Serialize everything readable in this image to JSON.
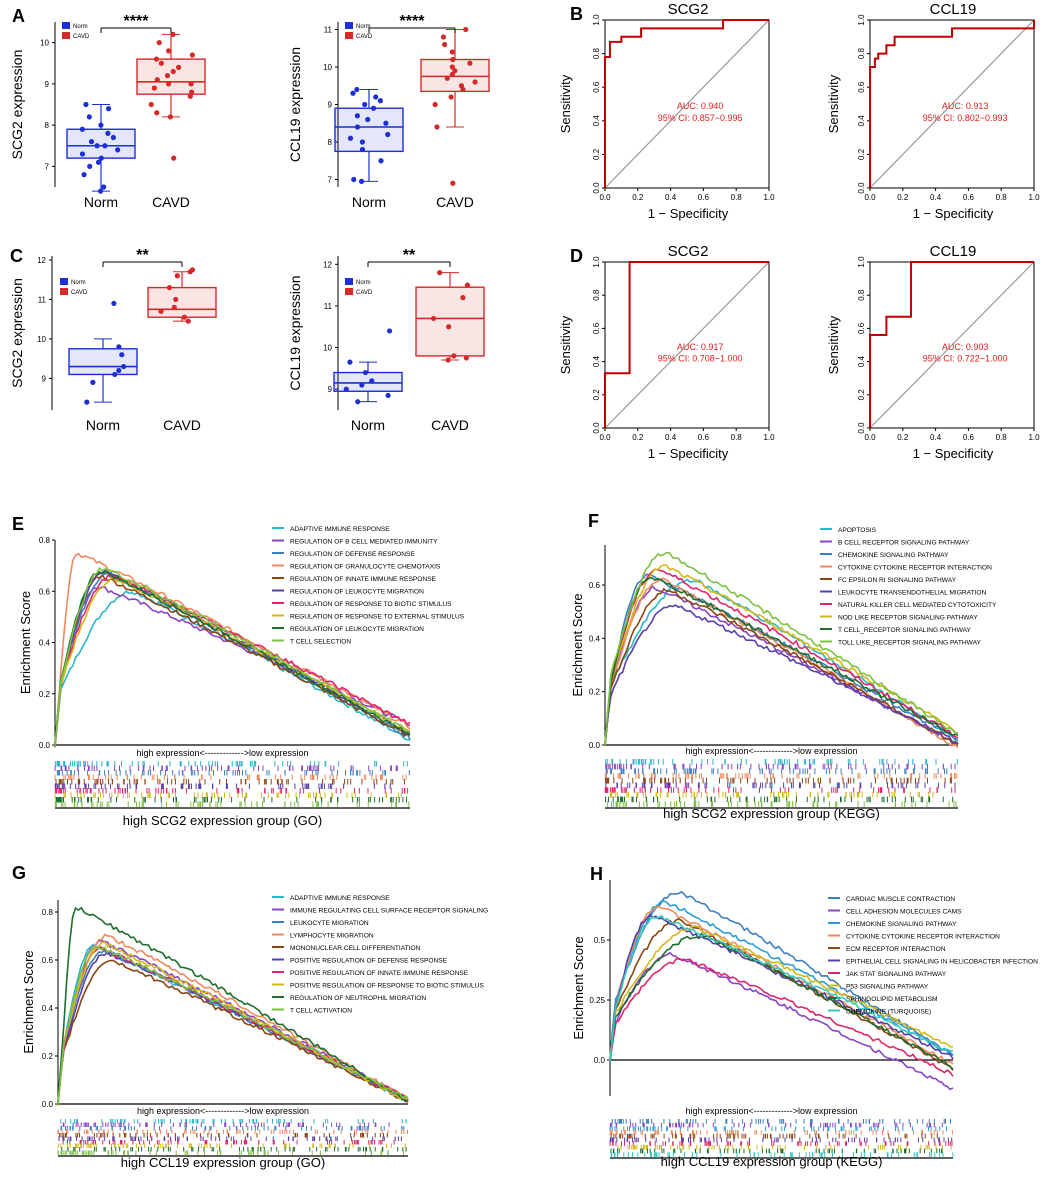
{
  "colors": {
    "norm": "#1f2fd6",
    "cavd": "#d42a2a",
    "roc": "#c00000",
    "diag": "#999999",
    "auc_text": "#e02020"
  },
  "labels": {
    "xlabel_roc": "1 − Specificity",
    "ylabel_roc": "Sensitivity",
    "legend_norm": "Norm",
    "legend_cavd": "CAVD",
    "es_ylabel": "Enrichment Score",
    "expr_arrow": "high expression<------------->low expression"
  },
  "chart_data": [
    {
      "id": "A1",
      "type": "box",
      "panel": "A",
      "ylabel": "SCG2 expression",
      "categories": [
        "Norm",
        "CAVD"
      ],
      "ylim": [
        6.5,
        10.5
      ],
      "yticks": [
        7,
        8,
        9,
        10
      ],
      "sig": "****",
      "groups": [
        {
          "name": "Norm",
          "q1": 7.2,
          "median": 7.5,
          "q3": 7.9,
          "whislo": 6.4,
          "whishi": 8.5,
          "points": [
            6.4,
            6.5,
            6.8,
            7.0,
            7.1,
            7.2,
            7.3,
            7.4,
            7.5,
            7.5,
            7.6,
            7.7,
            7.8,
            7.9,
            8.0,
            8.2,
            8.4,
            8.5
          ]
        },
        {
          "name": "CAVD",
          "q1": 8.75,
          "median": 9.05,
          "q3": 9.6,
          "whislo": 8.2,
          "whishi": 10.2,
          "points": [
            7.2,
            8.2,
            8.3,
            8.5,
            8.7,
            8.8,
            8.9,
            9.0,
            9.0,
            9.1,
            9.2,
            9.3,
            9.4,
            9.5,
            9.6,
            9.7,
            9.8,
            10.0,
            10.2
          ]
        }
      ]
    },
    {
      "id": "A2",
      "type": "box",
      "panel": "",
      "ylabel": "CCL19 expression",
      "categories": [
        "Norm",
        "CAVD"
      ],
      "ylim": [
        6.8,
        11.2
      ],
      "yticks": [
        7,
        8,
        9,
        10,
        11
      ],
      "sig": "****",
      "groups": [
        {
          "name": "Norm",
          "q1": 7.75,
          "median": 8.4,
          "q3": 8.9,
          "whislo": 6.95,
          "whishi": 9.4,
          "points": [
            6.95,
            7.0,
            7.5,
            7.8,
            8.0,
            8.1,
            8.2,
            8.4,
            8.5,
            8.6,
            8.7,
            8.9,
            9.0,
            9.1,
            9.2,
            9.3,
            9.4
          ]
        },
        {
          "name": "CAVD",
          "q1": 9.35,
          "median": 9.75,
          "q3": 10.2,
          "whislo": 8.4,
          "whishi": 11.0,
          "points": [
            6.9,
            8.4,
            9.0,
            9.2,
            9.4,
            9.5,
            9.6,
            9.7,
            9.8,
            9.9,
            10.0,
            10.1,
            10.2,
            10.4,
            10.6,
            10.8,
            11.0
          ]
        }
      ]
    },
    {
      "id": "B1",
      "type": "roc",
      "panel": "B",
      "title": "SCG2",
      "auc": "AUC: 0.940",
      "ci": "95% CI: 0.857−0.995",
      "fpr": [
        0,
        0,
        0.03,
        0.03,
        0.1,
        0.1,
        0.22,
        0.22,
        0.72,
        0.72,
        1.0
      ],
      "tpr": [
        0,
        0.78,
        0.78,
        0.87,
        0.87,
        0.9,
        0.9,
        0.95,
        0.95,
        1.0,
        1.0
      ]
    },
    {
      "id": "B2",
      "type": "roc",
      "panel": "",
      "title": "CCL19",
      "auc": "AUC: 0.913",
      "ci": "95% CI: 0.802−0.993",
      "fpr": [
        0,
        0,
        0.03,
        0.03,
        0.05,
        0.05,
        0.1,
        0.1,
        0.15,
        0.15,
        0.5,
        0.5,
        1.0,
        1.0
      ],
      "tpr": [
        0,
        0.72,
        0.72,
        0.77,
        0.77,
        0.8,
        0.8,
        0.85,
        0.85,
        0.9,
        0.9,
        0.95,
        0.95,
        1.0
      ]
    },
    {
      "id": "C1",
      "type": "box",
      "panel": "C",
      "ylabel": "SCG2 expression",
      "categories": [
        "Norm",
        "CAVD"
      ],
      "ylim": [
        8.2,
        12.1
      ],
      "yticks": [
        9,
        10,
        11,
        12
      ],
      "sig": "**",
      "groups": [
        {
          "name": "Norm",
          "q1": 9.1,
          "median": 9.3,
          "q3": 9.75,
          "whislo": 8.4,
          "whishi": 10.0,
          "points": [
            8.4,
            8.9,
            9.1,
            9.2,
            9.3,
            9.6,
            9.8,
            10.9
          ]
        },
        {
          "name": "CAVD",
          "q1": 10.55,
          "median": 10.75,
          "q3": 11.3,
          "whislo": 10.45,
          "whishi": 11.7,
          "points": [
            10.45,
            10.55,
            10.7,
            10.8,
            11.0,
            11.3,
            11.6,
            11.7,
            11.75
          ]
        }
      ]
    },
    {
      "id": "C2",
      "type": "box",
      "panel": "",
      "ylabel": "CCL19 expression",
      "categories": [
        "Norm",
        "CAVD"
      ],
      "ylim": [
        8.5,
        12.2
      ],
      "yticks": [
        9,
        10,
        11,
        12
      ],
      "sig": "**",
      "groups": [
        {
          "name": "Norm",
          "q1": 8.95,
          "median": 9.15,
          "q3": 9.4,
          "whislo": 8.7,
          "whishi": 9.65,
          "points": [
            8.7,
            8.85,
            9.0,
            9.1,
            9.2,
            9.4,
            9.65,
            10.4
          ]
        },
        {
          "name": "CAVD",
          "q1": 9.8,
          "median": 10.7,
          "q3": 11.45,
          "whislo": 9.7,
          "whishi": 11.8,
          "points": [
            9.7,
            9.75,
            9.8,
            10.5,
            10.7,
            11.2,
            11.5,
            11.8
          ]
        }
      ]
    },
    {
      "id": "D1",
      "type": "roc",
      "panel": "D",
      "title": "SCG2",
      "auc": "AUC: 0.917",
      "ci": "95% CI: 0.708−1.000",
      "fpr": [
        0,
        0,
        0.03,
        0.03,
        0.15,
        0.15,
        1.0
      ],
      "tpr": [
        0,
        0.33,
        0.33,
        0.33,
        0.33,
        1.0,
        1.0
      ]
    },
    {
      "id": "D2",
      "type": "roc",
      "panel": "",
      "title": "CCL19",
      "auc": "AUC: 0.903",
      "ci": "95% CI: 0.722−1.000",
      "fpr": [
        0,
        0,
        0.1,
        0.1,
        0.25,
        0.25,
        1.0
      ],
      "tpr": [
        0,
        0.56,
        0.56,
        0.67,
        0.67,
        1.0,
        1.0
      ]
    },
    {
      "id": "E",
      "type": "line",
      "subtype": "gsea",
      "panel": "E",
      "title": "high SCG2 expression group (GO)",
      "ylim": [
        0,
        0.8
      ],
      "yticks": [
        0.0,
        0.2,
        0.4,
        0.6,
        0.8
      ],
      "series": [
        {
          "name": "ADAPTIVE IMMUNE RESPONSE",
          "color": "#2ab7c9",
          "peak": 0.6,
          "pos": 0.22,
          "end": 0.02
        },
        {
          "name": "REGULATION OF B CELL MEDIATED IMMUNITY",
          "color": "#8a44c6",
          "peak": 0.62,
          "pos": 0.12,
          "end": 0.08
        },
        {
          "name": "REGULATION OF DEFENSE RESPONSE",
          "color": "#3e7fc1",
          "peak": 0.67,
          "pos": 0.15,
          "end": 0.03
        },
        {
          "name": "REGULATION OF GRANULOCYTE CHEMOTAXIS",
          "color": "#f08a5d",
          "peak": 0.75,
          "pos": 0.06,
          "end": 0.07
        },
        {
          "name": "REGULATION OF INNATE IMMUNE RESPONSE",
          "color": "#8b4513",
          "peak": 0.66,
          "pos": 0.13,
          "end": 0.03
        },
        {
          "name": "REGULATION OF LEUKOCYTE MIGRATION",
          "color": "#5a3fa8",
          "peak": 0.68,
          "pos": 0.14,
          "end": 0.04
        },
        {
          "name": "REGULATION OF RESPONSE TO BIOTIC STIMULUS",
          "color": "#e0266e",
          "peak": 0.66,
          "pos": 0.16,
          "end": 0.08
        },
        {
          "name": "REGULATION OF RESPONSE TO EXTERNAL STIMULUS",
          "color": "#d4b81a",
          "peak": 0.65,
          "pos": 0.17,
          "end": 0.05
        },
        {
          "name": "REGULATION OF LEUKOCYTE MIGRATION",
          "color": "#1f6e2e",
          "peak": 0.68,
          "pos": 0.13,
          "end": 0.04
        },
        {
          "name": "T CELL SELECTION",
          "color": "#7dc242",
          "peak": 0.69,
          "pos": 0.14,
          "end": 0.05
        }
      ]
    },
    {
      "id": "F",
      "type": "line",
      "subtype": "gsea",
      "panel": "F",
      "title": "high SCG2 expression group (KEGG)",
      "ylim": [
        0,
        0.75
      ],
      "yticks": [
        0.0,
        0.2,
        0.4,
        0.6
      ],
      "series": [
        {
          "name": "APOPTOSIS",
          "color": "#2ab7c9",
          "peak": 0.62,
          "pos": 0.25,
          "end": 0.02
        },
        {
          "name": "B CELL RECEPTOR SIGNALING PATHWAY",
          "color": "#8a44c6",
          "peak": 0.59,
          "pos": 0.14,
          "end": 0.0
        },
        {
          "name": "CHEMOKINE SIGNALING PATHWAY",
          "color": "#3e7fc1",
          "peak": 0.64,
          "pos": 0.12,
          "end": 0.02
        },
        {
          "name": "CYTOKINE CYTOKINE RECEPTOR INTERACTION",
          "color": "#f08a5d",
          "peak": 0.62,
          "pos": 0.16,
          "end": -0.01
        },
        {
          "name": "FC EPSILON RI SIGNALING PATHWAY",
          "color": "#8b4513",
          "peak": 0.58,
          "pos": 0.18,
          "end": 0.0
        },
        {
          "name": "LEUKOCYTE TRANSENDOTHELIAL MIGRATION",
          "color": "#5a3fa8",
          "peak": 0.52,
          "pos": 0.2,
          "end": 0.01
        },
        {
          "name": "NATURAL KILLER CELL MEDIATED CYTOTOXICITY",
          "color": "#e0266e",
          "peak": 0.66,
          "pos": 0.15,
          "end": 0.03
        },
        {
          "name": "NOD LIKE RECEPTOR SIGNALING PATHWAY",
          "color": "#d4b81a",
          "peak": 0.67,
          "pos": 0.17,
          "end": 0.05
        },
        {
          "name": "T CELL_RECEPTOR SIGNALING PATHWAY",
          "color": "#1f6e2e",
          "peak": 0.63,
          "pos": 0.13,
          "end": 0.03
        },
        {
          "name": "TOLL LIKE_RECEPTOR SIGNALING PATHWAY",
          "color": "#7dc242",
          "peak": 0.72,
          "pos": 0.17,
          "end": 0.04
        }
      ]
    },
    {
      "id": "G",
      "type": "line",
      "subtype": "gsea",
      "panel": "G",
      "title": "high CCL19 expression group (GO)",
      "ylim": [
        0,
        0.85
      ],
      "yticks": [
        0.0,
        0.2,
        0.4,
        0.6,
        0.8
      ],
      "series": [
        {
          "name": "ADAPTIVE IMMUNE RESPONSE",
          "color": "#2ab7c9",
          "peak": 0.66,
          "pos": 0.1,
          "end": 0.01
        },
        {
          "name": "IMMUNE REGULATING CELL SURFACE RECEPTOR SIGNALING",
          "color": "#8a44c6",
          "peak": 0.68,
          "pos": 0.12,
          "end": 0.02
        },
        {
          "name": "LEUKOCYTE MIGRATION",
          "color": "#3e7fc1",
          "peak": 0.64,
          "pos": 0.13,
          "end": 0.01
        },
        {
          "name": "LYMPHOCYTE MIGRATION",
          "color": "#f08a5d",
          "peak": 0.7,
          "pos": 0.14,
          "end": 0.02
        },
        {
          "name": "MONONUCLEAR CELL DIFFERENTIATION",
          "color": "#8b4513",
          "peak": 0.6,
          "pos": 0.15,
          "end": 0.01
        },
        {
          "name": "POSITIVE REGULATION OF DEFENSE RESPONSE",
          "color": "#5a3fa8",
          "peak": 0.63,
          "pos": 0.14,
          "end": 0.02
        },
        {
          "name": "POSITIVE REGULATION OF INNATE IMMUNE RESPONSE",
          "color": "#e0266e",
          "peak": 0.65,
          "pos": 0.12,
          "end": 0.02
        },
        {
          "name": "POSITIVE REGULATION OF RESPONSE TO BIOTIC STIMULUS",
          "color": "#d4b81a",
          "peak": 0.67,
          "pos": 0.13,
          "end": 0.01
        },
        {
          "name": "REGULATION OF NEUTROPHIL MIGRATION",
          "color": "#1f6e2e",
          "peak": 0.82,
          "pos": 0.05,
          "end": 0.01
        },
        {
          "name": "T CELL ACTIVATION",
          "color": "#7dc242",
          "peak": 0.66,
          "pos": 0.11,
          "end": 0.02
        }
      ]
    },
    {
      "id": "H",
      "type": "line",
      "subtype": "gsea",
      "panel": "H",
      "title": "high CCL19 expression group (KEGG)",
      "ylim": [
        -0.15,
        0.75
      ],
      "yticks": [
        0.0,
        0.25,
        0.5
      ],
      "series": [
        {
          "name": "CARDIAC MUSCLE CONTRACTION",
          "color": "#3e7fc1",
          "peak": 0.7,
          "pos": 0.2,
          "end": 0.02
        },
        {
          "name": "CELL ADHESION MOLECULES CAMS",
          "color": "#8a44c6",
          "peak": 0.44,
          "pos": 0.18,
          "end": -0.12
        },
        {
          "name": "CHEMOKINE SIGNALING PATHWAY",
          "color": "#2a9fd6",
          "peak": 0.66,
          "pos": 0.16,
          "end": 0.02
        },
        {
          "name": "CYTOKINE CYTOKINE RECEPTOR INTERACTION",
          "color": "#f08a5d",
          "peak": 0.64,
          "pos": 0.14,
          "end": -0.02
        },
        {
          "name": "ECM RECEPTOR INTERACTION",
          "color": "#8b4513",
          "peak": 0.58,
          "pos": 0.2,
          "end": -0.04
        },
        {
          "name": "EPITHELIAL CELL SIGNALING IN HELICOBACTER INFECTION",
          "color": "#5a3fa8",
          "peak": 0.6,
          "pos": 0.12,
          "end": 0.01
        },
        {
          "name": "JAK STAT SIGNALING PATHWAY",
          "color": "#e0266e",
          "peak": 0.42,
          "pos": 0.22,
          "end": -0.06
        },
        {
          "name": "P53 SIGNALING PATHWAY",
          "color": "#d4b81a",
          "peak": 0.55,
          "pos": 0.25,
          "end": 0.05
        },
        {
          "name": "SPHINGOLIPID METABOLISM",
          "color": "#1f6e2e",
          "peak": 0.52,
          "pos": 0.27,
          "end": -0.03
        },
        {
          "name": "CHEMOKINE (TURQUOISE)",
          "color": "#38c8c0",
          "peak": 0.6,
          "pos": 0.14,
          "end": 0.03
        }
      ]
    }
  ]
}
